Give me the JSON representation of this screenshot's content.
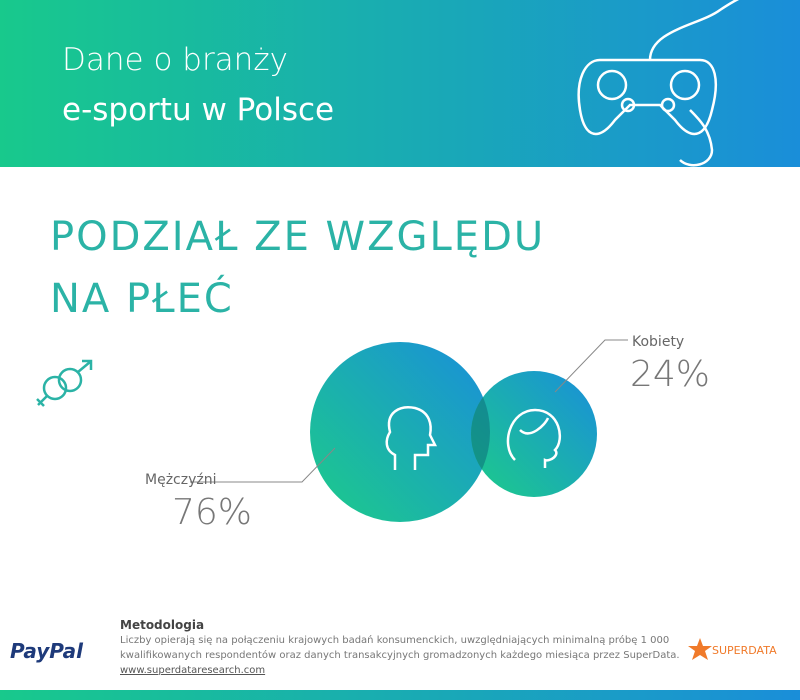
{
  "header": {
    "title_lines": [
      "Dane o branży",
      "e-sportu w Polsce"
    ]
  },
  "section": {
    "title_lines": [
      "PODZIAŁ ZE WZGLĘDU",
      "NA PŁEĆ"
    ]
  },
  "groups": [
    {
      "label": "Mężczyźni",
      "value": "76%"
    },
    {
      "label": "Kobiety",
      "value": "24%"
    }
  ],
  "footer": {
    "heading": "Metodologia",
    "text_lines": [
      "Liczby opierają się na połączeniu krajowych badań konsumenckich, uwzględniających minimalną próbę 1 000",
      "kwalifikowanych respondentów oraz danych transakcyjnych gromadzonych każdego miesiąca przez SuperData."
    ],
    "link": "www.superdataresearch.com"
  },
  "logos": {
    "paypal": "PayPal",
    "superdata": "SUPERDATA"
  }
}
